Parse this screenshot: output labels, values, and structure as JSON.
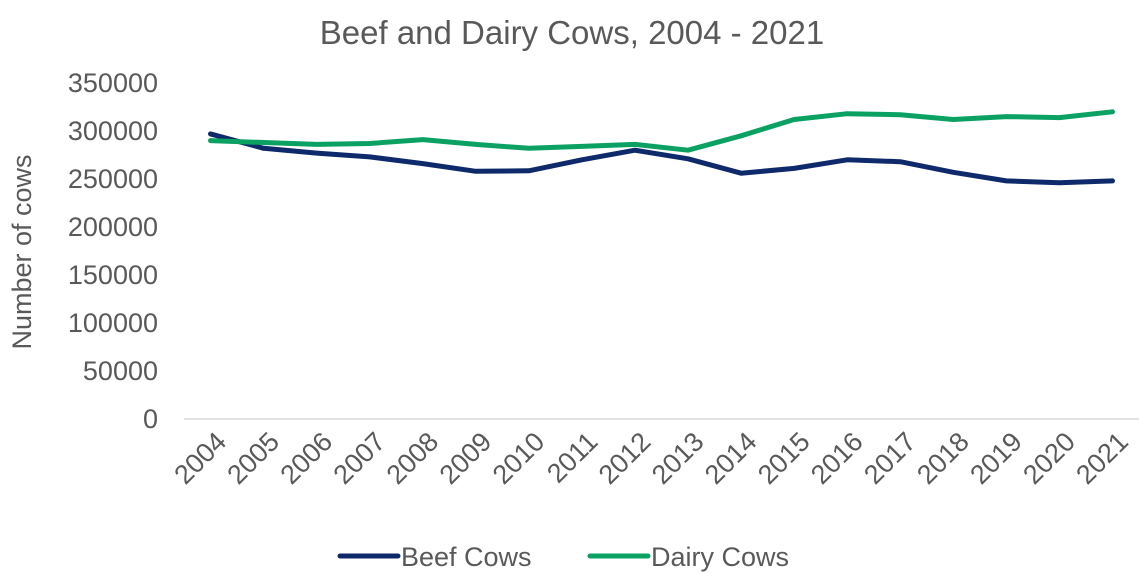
{
  "chart_data": {
    "type": "line",
    "title": "Beef and Dairy Cows, 2004 - 2021",
    "xlabel": "",
    "ylabel": "Number of cows",
    "ylim": [
      0,
      350000
    ],
    "yticks": [
      "0",
      "50000",
      "100000",
      "150000",
      "200000",
      "250000",
      "300000",
      "350000"
    ],
    "categories": [
      "2004",
      "2005",
      "2006",
      "2007",
      "2008",
      "2009",
      "2010",
      "2011",
      "2012",
      "2013",
      "2014",
      "2015",
      "2016",
      "2017",
      "2018",
      "2019",
      "2020",
      "2021"
    ],
    "series": [
      {
        "name": "Beef Cows",
        "color": "#0f2a6b",
        "values": [
          297000,
          282000,
          277000,
          273000,
          266000,
          258000,
          258500,
          270000,
          280000,
          271000,
          256000,
          261000,
          270000,
          268000,
          257000,
          248000,
          246000,
          248000
        ]
      },
      {
        "name": "Dairy Cows",
        "color": "#0aa163",
        "values": [
          290000,
          288000,
          286000,
          287000,
          291000,
          286000,
          282000,
          284000,
          286000,
          280000,
          295000,
          312000,
          318000,
          317000,
          312000,
          315000,
          314000,
          320000
        ]
      }
    ],
    "grid": false,
    "axis_color": "#d9d9d9",
    "legend_position": "bottom"
  }
}
